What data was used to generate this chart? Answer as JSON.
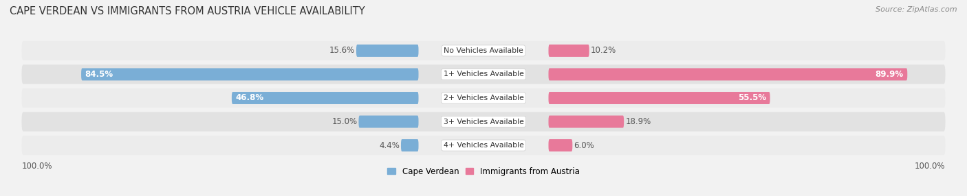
{
  "title": "CAPE VERDEAN VS IMMIGRANTS FROM AUSTRIA VEHICLE AVAILABILITY",
  "source": "Source: ZipAtlas.com",
  "categories": [
    "No Vehicles Available",
    "1+ Vehicles Available",
    "2+ Vehicles Available",
    "3+ Vehicles Available",
    "4+ Vehicles Available"
  ],
  "cape_verdean": [
    15.6,
    84.5,
    46.8,
    15.0,
    4.4
  ],
  "immigrants_austria": [
    10.2,
    89.9,
    55.5,
    18.9,
    6.0
  ],
  "color_cv": "#7aaed6",
  "color_ia": "#e8799a",
  "bg_color": "#f2f2f2",
  "row_bg": "#e8e8e8",
  "max_value": 100.0,
  "label_fontsize": 8.5,
  "title_fontsize": 10.5,
  "source_fontsize": 8,
  "inside_label_threshold": 20.0
}
